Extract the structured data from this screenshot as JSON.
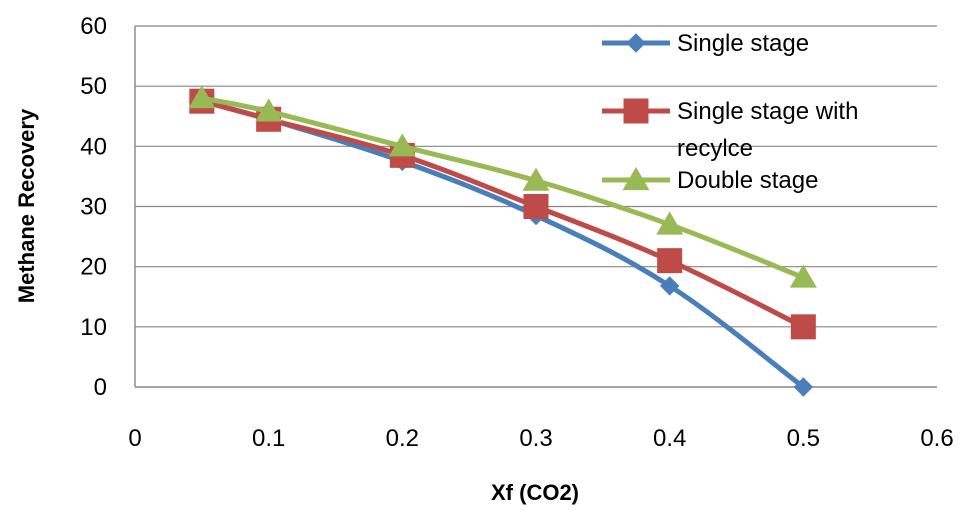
{
  "chart_data": {
    "type": "line",
    "title": "",
    "xlabel": "Xf (CO2)",
    "ylabel": "Methane Recovery",
    "xlim": [
      0,
      0.6
    ],
    "ylim": [
      0,
      60
    ],
    "xticks": [
      "0",
      "0.1",
      "0.2",
      "0.3",
      "0.4",
      "0.5",
      "0.6"
    ],
    "yticks": [
      "0",
      "10",
      "20",
      "30",
      "40",
      "50",
      "60"
    ],
    "grid": "horizontal",
    "legend_position": "top-right",
    "series": [
      {
        "name": "Single stage",
        "color": "#4a7ebb",
        "marker": "diamond",
        "x": [
          0.05,
          0.1,
          0.2,
          0.3,
          0.4,
          0.5
        ],
        "y": [
          47.5,
          44.5,
          37.5,
          28.5,
          16.8,
          0
        ]
      },
      {
        "name": "Single stage with recylce",
        "name_lines": [
          "Single stage with",
          "recylce"
        ],
        "color": "#be4b48",
        "marker": "square",
        "x": [
          0.05,
          0.1,
          0.2,
          0.3,
          0.4,
          0.5
        ],
        "y": [
          47.5,
          44.5,
          38.5,
          30,
          21,
          10
        ]
      },
      {
        "name": "Double stage",
        "color": "#98b954",
        "marker": "triangle",
        "x": [
          0.05,
          0.1,
          0.2,
          0.3,
          0.4,
          0.5
        ],
        "y": [
          48,
          45.8,
          40,
          34.3,
          27,
          18.2
        ]
      }
    ]
  }
}
